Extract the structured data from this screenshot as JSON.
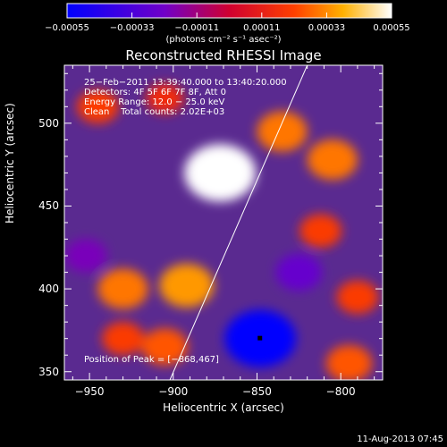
{
  "chart_data": {
    "type": "heatmap",
    "title": "Reconstructed RHESSI Image",
    "xlabel": "Heliocentric X (arcsec)",
    "ylabel": "Heliocentric Y (arcsec)",
    "xlim": [
      -965,
      -775
    ],
    "ylim": [
      345,
      535
    ],
    "x_ticks": [
      -950,
      -900,
      -850,
      -800
    ],
    "y_ticks": [
      350,
      400,
      450,
      500
    ],
    "x_tick_labels": [
      "−950",
      "−900",
      "−850",
      "−800"
    ],
    "y_tick_labels": [
      "350",
      "400",
      "450",
      "500"
    ],
    "colorbar": {
      "range": [
        -0.00055,
        0.00055
      ],
      "ticks": [
        -0.00055,
        -0.00033,
        -0.00011,
        0.00011,
        0.00033,
        0.00055
      ],
      "tick_labels": [
        "−0.00055",
        "−0.00033",
        "−0.00011",
        "0.00011",
        "0.00033",
        "0.00055"
      ],
      "units_text": "(photons cm⁻² s⁻¹ asec⁻²)",
      "colors": [
        "#0000ff",
        "#8000c0",
        "#ff0000",
        "#ff9900",
        "#ffffff"
      ]
    },
    "annotations": [
      "25−Feb−2011 13:39:40.000 to 13:40:20.000",
      "Detectors: 4F 5F 6F 7F 8F, Att 0",
      "Energy Range: 12.0 − 25.0 keV",
      "Clean    Total counts: 2.02E+03"
    ],
    "peak_text": "Position of Peak = [−868,467]",
    "peak": [
      -868,
      467
    ],
    "limb_line": [
      [
        -902,
        345
      ],
      [
        -820,
        535
      ]
    ],
    "sources": [
      {
        "x": -872,
        "y": 470,
        "value": 0.00055
      },
      {
        "x": -835,
        "y": 495,
        "value": 0.0003
      },
      {
        "x": -805,
        "y": 478,
        "value": 0.0003
      },
      {
        "x": -930,
        "y": 400,
        "value": 0.0003
      },
      {
        "x": -892,
        "y": 402,
        "value": 0.00035
      },
      {
        "x": -930,
        "y": 370,
        "value": 0.0002
      },
      {
        "x": -905,
        "y": 365,
        "value": 0.00025
      },
      {
        "x": -945,
        "y": 510,
        "value": 0.0002
      },
      {
        "x": -905,
        "y": 515,
        "value": 0.00015
      },
      {
        "x": -790,
        "y": 395,
        "value": 0.0002
      },
      {
        "x": -795,
        "y": 355,
        "value": 0.00025
      },
      {
        "x": -812,
        "y": 435,
        "value": 0.0002
      },
      {
        "x": -848,
        "y": 370,
        "value": -0.00055
      },
      {
        "x": -825,
        "y": 410,
        "value": -0.00025
      },
      {
        "x": -952,
        "y": 420,
        "value": -0.0002
      }
    ]
  },
  "footer": {
    "timestamp": "11-Aug-2013 07:45"
  }
}
